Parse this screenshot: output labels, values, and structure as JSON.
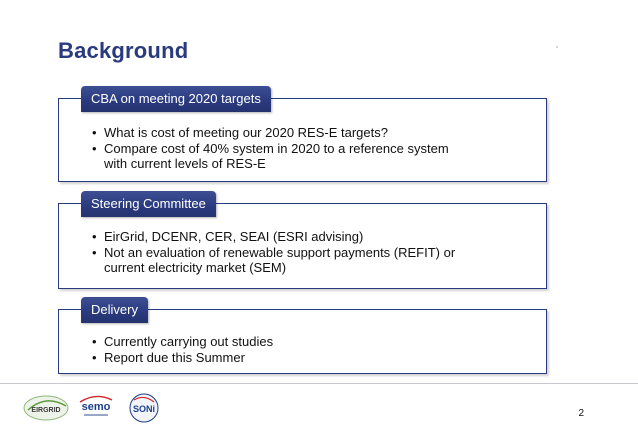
{
  "slide": {
    "title": "Background",
    "page_number": "2"
  },
  "sections": [
    {
      "heading": "CBA on meeting 2020 targets",
      "bullets": [
        "What is cost of meeting our 2020 RES-E targets?",
        "Compare cost of 40% system in 2020 to a reference system",
        "with current levels of RES-E"
      ]
    },
    {
      "heading": "Steering Committee",
      "bullets": [
        "EirGrid, DCENR, CER, SEAI  (ESRI advising)",
        "Not an evaluation of renewable support payments (REFIT) or",
        "current electricity market (SEM)"
      ]
    },
    {
      "heading": "Delivery",
      "bullets": [
        "Currently carrying out studies",
        "Report due this Summer"
      ]
    }
  ],
  "bullet_char": "•",
  "logos": {
    "eirgrid": "EIRGRID",
    "semo": "semo",
    "soni": "SONi"
  },
  "colors": {
    "accent": "#2a3a7e",
    "eirgrid_green": "#5a9a3a",
    "semo_blue": "#1c3e8a",
    "semo_red": "#d2232a"
  }
}
